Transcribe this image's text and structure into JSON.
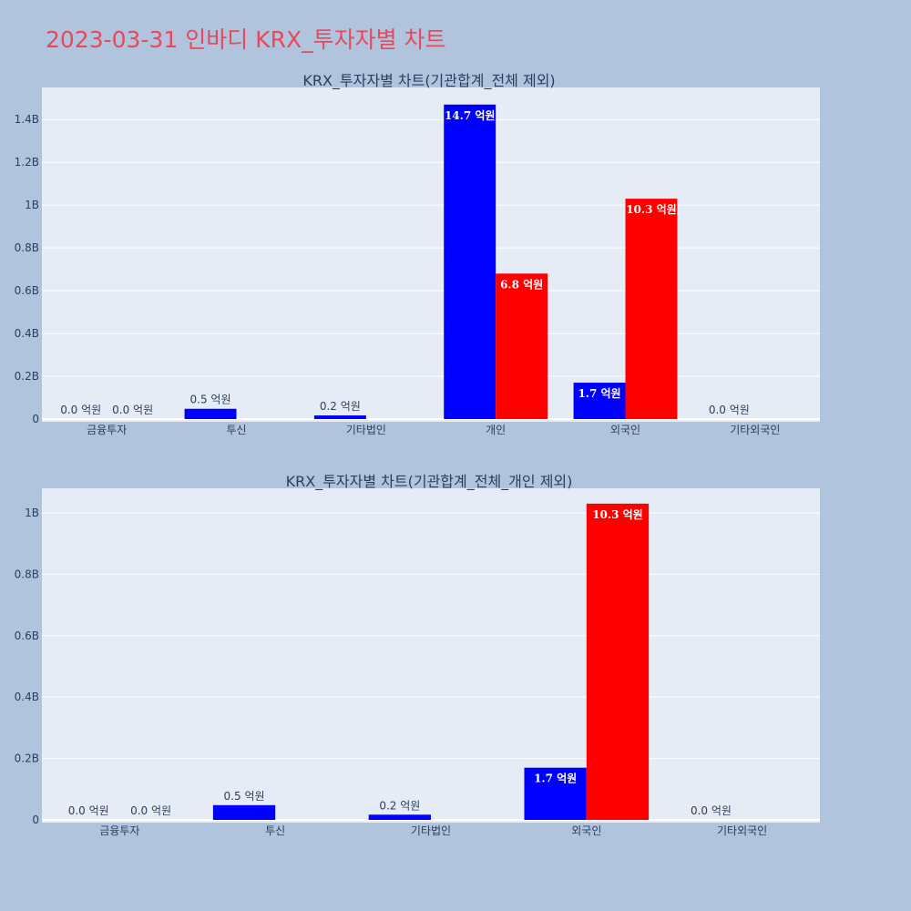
{
  "page": {
    "title": "2023-03-31 인바디 KRX_투자자별 차트"
  },
  "colors": {
    "buy": "#0000ff",
    "sell": "#ff0000",
    "plot_bg": "#e5ecf6",
    "paper_bg": "#b0c4de",
    "title": "#e8485a",
    "text": "#2a3f5f"
  },
  "chart_data": [
    {
      "type": "bar",
      "title": "KRX_투자자별 차트(기관합계_전체 제외)",
      "categories": [
        "금융투자",
        "투신",
        "기타법인",
        "개인",
        "외국인",
        "기타외국인"
      ],
      "series": [
        {
          "values": [
            0,
            48000000,
            17000000,
            1470000000,
            170000000,
            0
          ],
          "labels": [
            "0.0 억원",
            "0.5 억원",
            "0.2 억원",
            "14.7 억원",
            "1.7 억원",
            "0.0 억원"
          ]
        },
        {
          "values": [
            0,
            0,
            0,
            680000000,
            1030000000,
            0
          ],
          "labels": [
            "0.0 억원",
            "",
            "",
            "6.8 억원",
            "10.3 억원",
            ""
          ]
        }
      ],
      "yticks": [
        0,
        200000000,
        400000000,
        600000000,
        800000000,
        1000000000,
        1200000000,
        1400000000
      ],
      "ytick_labels": [
        "0",
        "0.2B",
        "0.4B",
        "0.6B",
        "0.8B",
        "1B",
        "1.2B",
        "1.4B"
      ],
      "ylim": [
        0,
        1550000000
      ],
      "grid": true
    },
    {
      "type": "bar",
      "title": "KRX_투자자별 차트(기관합계_전체_개인 제외)",
      "categories": [
        "금융투자",
        "투신",
        "기타법인",
        "외국인",
        "기타외국인"
      ],
      "series": [
        {
          "values": [
            0,
            48000000,
            17000000,
            170000000,
            0
          ],
          "labels": [
            "0.0 억원",
            "0.5 억원",
            "0.2 억원",
            "1.7 억원",
            "0.0 억원"
          ]
        },
        {
          "values": [
            0,
            0,
            0,
            1030000000,
            0
          ],
          "labels": [
            "0.0 억원",
            "",
            "",
            "10.3 억원",
            ""
          ]
        }
      ],
      "yticks": [
        0,
        200000000,
        400000000,
        600000000,
        800000000,
        1000000000
      ],
      "ytick_labels": [
        "0",
        "0.2B",
        "0.4B",
        "0.6B",
        "0.8B",
        "1B"
      ],
      "ylim": [
        0,
        1080000000
      ],
      "grid": true
    }
  ]
}
